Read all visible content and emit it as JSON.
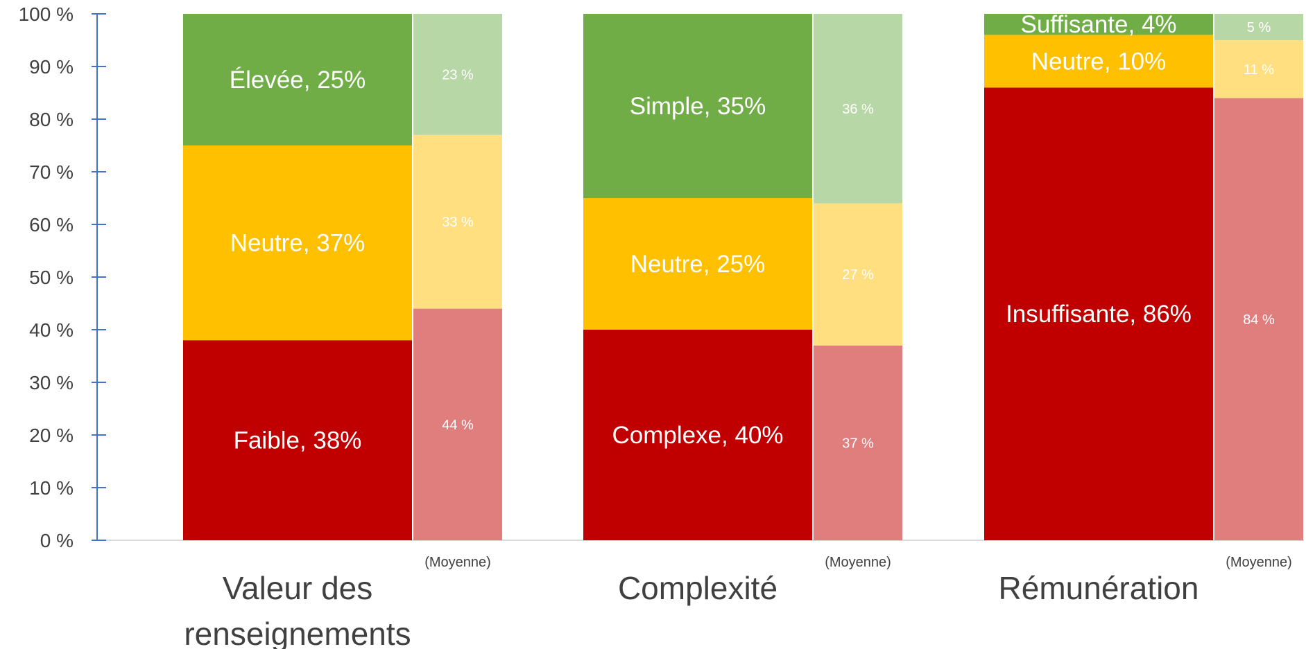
{
  "chart_data": {
    "type": "bar",
    "stacked": true,
    "ylim": [
      0,
      100
    ],
    "y_ticks": [
      "0 %",
      "10 %",
      "20 %",
      "30 %",
      "40 %",
      "50 %",
      "60 %",
      "70 %",
      "80 %",
      "90 %",
      "100 %"
    ],
    "grid": false,
    "legend": "none",
    "categories": [
      {
        "name": "Valeur des renseignements",
        "name_lines": [
          "Valeur des",
          "renseignements"
        ],
        "average_label": "(Moyenne)",
        "segments": [
          {
            "label": "Faible, 38%",
            "value": 38,
            "avg_value": 44,
            "avg_label": "44 %"
          },
          {
            "label": "Neutre, 37%",
            "value": 37,
            "avg_value": 33,
            "avg_label": "33 %"
          },
          {
            "label": "Élevée, 25%",
            "value": 25,
            "avg_value": 23,
            "avg_label": "23 %"
          }
        ]
      },
      {
        "name": "Complexité",
        "name_lines": [
          "Complexité"
        ],
        "average_label": "(Moyenne)",
        "segments": [
          {
            "label": "Complexe, 40%",
            "value": 40,
            "avg_value": 37,
            "avg_label": "37 %"
          },
          {
            "label": "Neutre, 25%",
            "value": 25,
            "avg_value": 27,
            "avg_label": "27 %"
          },
          {
            "label": "Simple, 35%",
            "value": 35,
            "avg_value": 36,
            "avg_label": "36 %"
          }
        ]
      },
      {
        "name": "Rémunération",
        "name_lines": [
          "Rémunération"
        ],
        "average_label": "(Moyenne)",
        "segments": [
          {
            "label": "Insuffisante, 86%",
            "value": 86,
            "avg_value": 84,
            "avg_label": "84 %"
          },
          {
            "label": "Neutre, 10%",
            "value": 10,
            "avg_value": 11,
            "avg_label": "11 %"
          },
          {
            "label": "Suffisante, 4%",
            "value": 4,
            "avg_value": 5,
            "avg_label": "5 %"
          }
        ]
      }
    ],
    "colors": {
      "main": [
        "#c00000",
        "#ffc000",
        "#70ad47"
      ],
      "average": [
        "#e07e7e",
        "#ffdf80",
        "#b8d7a6"
      ],
      "axis": "#4472c4",
      "baseline": "#d9d9d9"
    }
  }
}
